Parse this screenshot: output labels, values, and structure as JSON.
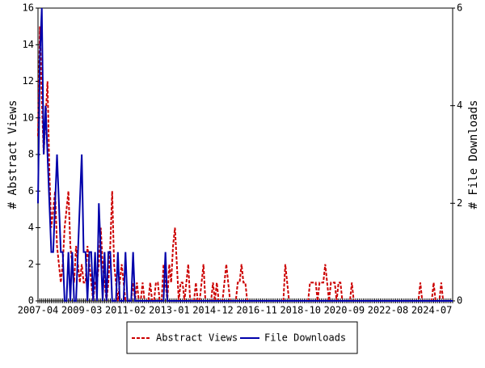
{
  "chart_data": {
    "type": "line",
    "y_label": "# Abstract Views",
    "y2_label": "# File Downloads",
    "categories": [
      "2007-04",
      null,
      null,
      null,
      null,
      null,
      null,
      null,
      null,
      null,
      null,
      null,
      null,
      null,
      null,
      null,
      null,
      null,
      null,
      null,
      null,
      null,
      null,
      "2009-03",
      null,
      null,
      null,
      null,
      null,
      null,
      null,
      null,
      null,
      null,
      null,
      null,
      null,
      null,
      null,
      null,
      null,
      null,
      null,
      null,
      null,
      null,
      "2011-02",
      null,
      null,
      null,
      null,
      null,
      null,
      null,
      null,
      null,
      null,
      null,
      null,
      null,
      null,
      null,
      null,
      null,
      null,
      null,
      null,
      null,
      null,
      "2013-01",
      null,
      null,
      null,
      null,
      null,
      null,
      null,
      null,
      null,
      null,
      null,
      null,
      null,
      null,
      null,
      null,
      null,
      null,
      null,
      null,
      null,
      null,
      "2014-12",
      null,
      null,
      null,
      null,
      null,
      null,
      null,
      null,
      null,
      null,
      null,
      null,
      null,
      null,
      null,
      null,
      null,
      null,
      null,
      null,
      null,
      null,
      "2016-11",
      null,
      null,
      null,
      null,
      null,
      null,
      null,
      null,
      null,
      null,
      null,
      null,
      null,
      null,
      null,
      null,
      null,
      null,
      null,
      null,
      null,
      null,
      "2018-10",
      null,
      null,
      null,
      null,
      null,
      null,
      null,
      null,
      null,
      null,
      null,
      null,
      null,
      null,
      null,
      null,
      null,
      null,
      null,
      null,
      null,
      null,
      "2020-09",
      null,
      null,
      null,
      null,
      null,
      null,
      null,
      null,
      null,
      null,
      null,
      null,
      null,
      null,
      null,
      null,
      null,
      null,
      null,
      null,
      null,
      null,
      "2022-08",
      null,
      null,
      null,
      null,
      null,
      null,
      null,
      null,
      null,
      null,
      null,
      null,
      null,
      null,
      null,
      null,
      null,
      null,
      null,
      null,
      null,
      null,
      "2024-07",
      null,
      null,
      null,
      null,
      null,
      null,
      null,
      null,
      null,
      null,
      null
    ],
    "series": [
      {
        "name": "Abstract Views",
        "color": "#cc0000",
        "dash": true,
        "axis": "y",
        "values": [
          9,
          15,
          11,
          8,
          10,
          12,
          7,
          4,
          5,
          6,
          3,
          2,
          1,
          2,
          4,
          5,
          6,
          3,
          2,
          1,
          3,
          2,
          1,
          2,
          1,
          1,
          3,
          2,
          1,
          0,
          1,
          1,
          2,
          4,
          2,
          1,
          0,
          1,
          3,
          6,
          2,
          1,
          0,
          1,
          2,
          1,
          0,
          0,
          0,
          0,
          1,
          0,
          1,
          0,
          0,
          1,
          0,
          0,
          0,
          1,
          0,
          0,
          1,
          1,
          0,
          0,
          2,
          1,
          0,
          2,
          1,
          3,
          4,
          2,
          0,
          1,
          1,
          0,
          1,
          2,
          0,
          0,
          0,
          1,
          0,
          0,
          1,
          2,
          0,
          0,
          0,
          0,
          1,
          0,
          1,
          0,
          0,
          0,
          1,
          2,
          1,
          0,
          0,
          0,
          0,
          1,
          1,
          2,
          1,
          1,
          0,
          0,
          0,
          0,
          0,
          0,
          0,
          0,
          0,
          0,
          0,
          0,
          0,
          0,
          0,
          0,
          0,
          0,
          0,
          0,
          2,
          1,
          0,
          0,
          0,
          0,
          0,
          0,
          0,
          0,
          0,
          0,
          0,
          1,
          1,
          1,
          1,
          0,
          1,
          1,
          1,
          2,
          1,
          0,
          1,
          1,
          1,
          0,
          1,
          1,
          0,
          0,
          0,
          0,
          0,
          1,
          0,
          0,
          0,
          0,
          0,
          0,
          0,
          0,
          0,
          0,
          0,
          0,
          0,
          0,
          0,
          0,
          0,
          0,
          0,
          0,
          0,
          0,
          0,
          0,
          0,
          0,
          0,
          0,
          0,
          0,
          0,
          0,
          0,
          0,
          0,
          1,
          0,
          0,
          0,
          0,
          0,
          0,
          1,
          0,
          0,
          0,
          1,
          0,
          0,
          0,
          0,
          0,
          0
        ]
      },
      {
        "name": "File Downloads",
        "color": "#0000aa",
        "dash": false,
        "axis": "y2",
        "values": [
          2,
          5,
          6,
          3,
          4,
          3,
          2,
          1,
          1,
          2,
          3,
          2,
          1,
          1,
          0,
          0,
          1,
          0,
          1,
          0,
          0,
          1,
          2,
          3,
          1,
          1,
          0,
          1,
          1,
          0,
          1,
          0,
          2,
          1,
          0,
          1,
          0,
          1,
          1,
          0,
          0,
          0,
          1,
          0,
          0,
          0,
          1,
          0,
          0,
          0,
          1,
          0,
          0,
          0,
          0,
          0,
          0,
          0,
          0,
          0,
          0,
          0,
          0,
          0,
          0,
          0,
          0,
          1,
          0,
          0,
          0,
          0,
          0,
          0,
          0,
          0,
          0,
          0,
          0,
          0,
          0,
          0,
          0,
          0,
          0,
          0,
          0,
          0,
          0,
          0,
          0,
          0,
          0,
          0,
          0,
          0,
          0,
          0,
          0,
          0,
          0,
          0,
          0,
          0,
          0,
          0,
          0,
          0,
          0,
          0,
          0,
          0,
          0,
          0,
          0,
          0,
          0,
          0,
          0,
          0,
          0,
          0,
          0,
          0,
          0,
          0,
          0,
          0,
          0,
          0,
          0,
          0,
          0,
          0,
          0,
          0,
          0,
          0,
          0,
          0,
          0,
          0,
          0,
          0,
          0,
          0,
          0,
          0,
          0,
          0,
          0,
          0,
          0,
          0,
          0,
          0,
          0,
          0,
          0,
          0,
          0,
          0,
          0,
          0,
          0,
          0,
          0,
          0,
          0,
          0,
          0,
          0,
          0,
          0,
          0,
          0,
          0,
          0,
          0,
          0,
          0,
          0,
          0,
          0,
          0,
          0,
          0,
          0,
          0,
          0,
          0,
          0,
          0,
          0,
          0,
          0,
          0,
          0,
          0,
          0,
          0,
          0,
          0,
          0,
          0,
          0,
          0,
          0,
          0,
          0,
          0,
          0,
          0,
          0,
          0,
          0,
          0,
          0,
          0
        ]
      }
    ],
    "ylim": [
      0,
      16
    ],
    "yticks": [
      0,
      2,
      4,
      6,
      8,
      10,
      12,
      14,
      16
    ],
    "y2lim": [
      0,
      6
    ],
    "y2ticks": [
      0,
      2,
      4,
      6
    ],
    "grid": false,
    "legend": "bottom"
  }
}
